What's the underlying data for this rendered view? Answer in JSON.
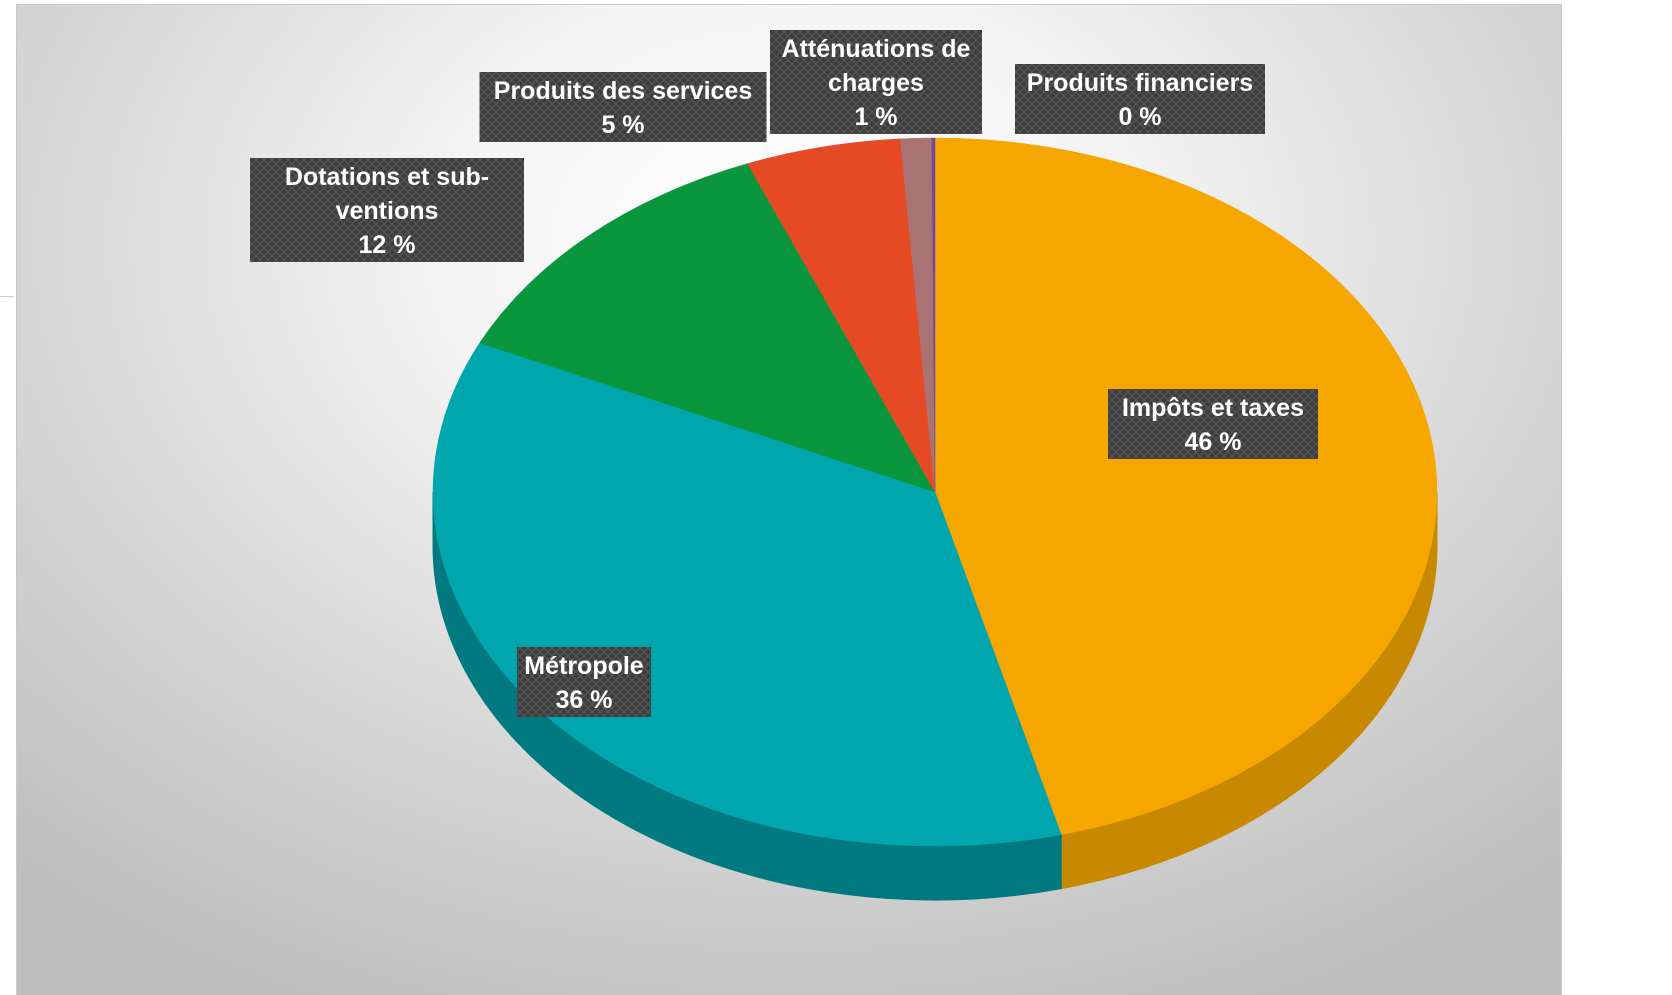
{
  "chart_data": {
    "type": "pie",
    "title": "",
    "slices": [
      {
        "label": "Impôts et taxes",
        "value": 46,
        "value_label": "46 %",
        "color": "#F5A700",
        "side_color": "#C88800"
      },
      {
        "label": "Métropole",
        "value": 36,
        "value_label": "36 %",
        "color": "#00A6AE",
        "side_color": "#007A80"
      },
      {
        "label": "Dotations et sub-ventions",
        "label_lines": [
          "Dotations et sub-",
          "ventions"
        ],
        "value": 12,
        "value_label": "12 %",
        "color": "#0A963C",
        "side_color": "#07702C"
      },
      {
        "label": "Produits des services",
        "value": 5,
        "value_label": "5 %",
        "color": "#E64A24",
        "side_color": "#B0381B"
      },
      {
        "label": "Atténuations de charges",
        "label_lines": [
          "Atténuations de",
          "charges"
        ],
        "value": 1,
        "value_label": "1 %",
        "color": "#A97373",
        "side_color": "#855858"
      },
      {
        "label": "Produits financiers",
        "value": 0.1,
        "value_label": "0 %",
        "color": "#6E4A9E",
        "side_color": "#533878"
      }
    ],
    "style": "3d",
    "legend": "none",
    "label_box_color": "#3d3d3d",
    "background": "radial gradient white to grey"
  }
}
